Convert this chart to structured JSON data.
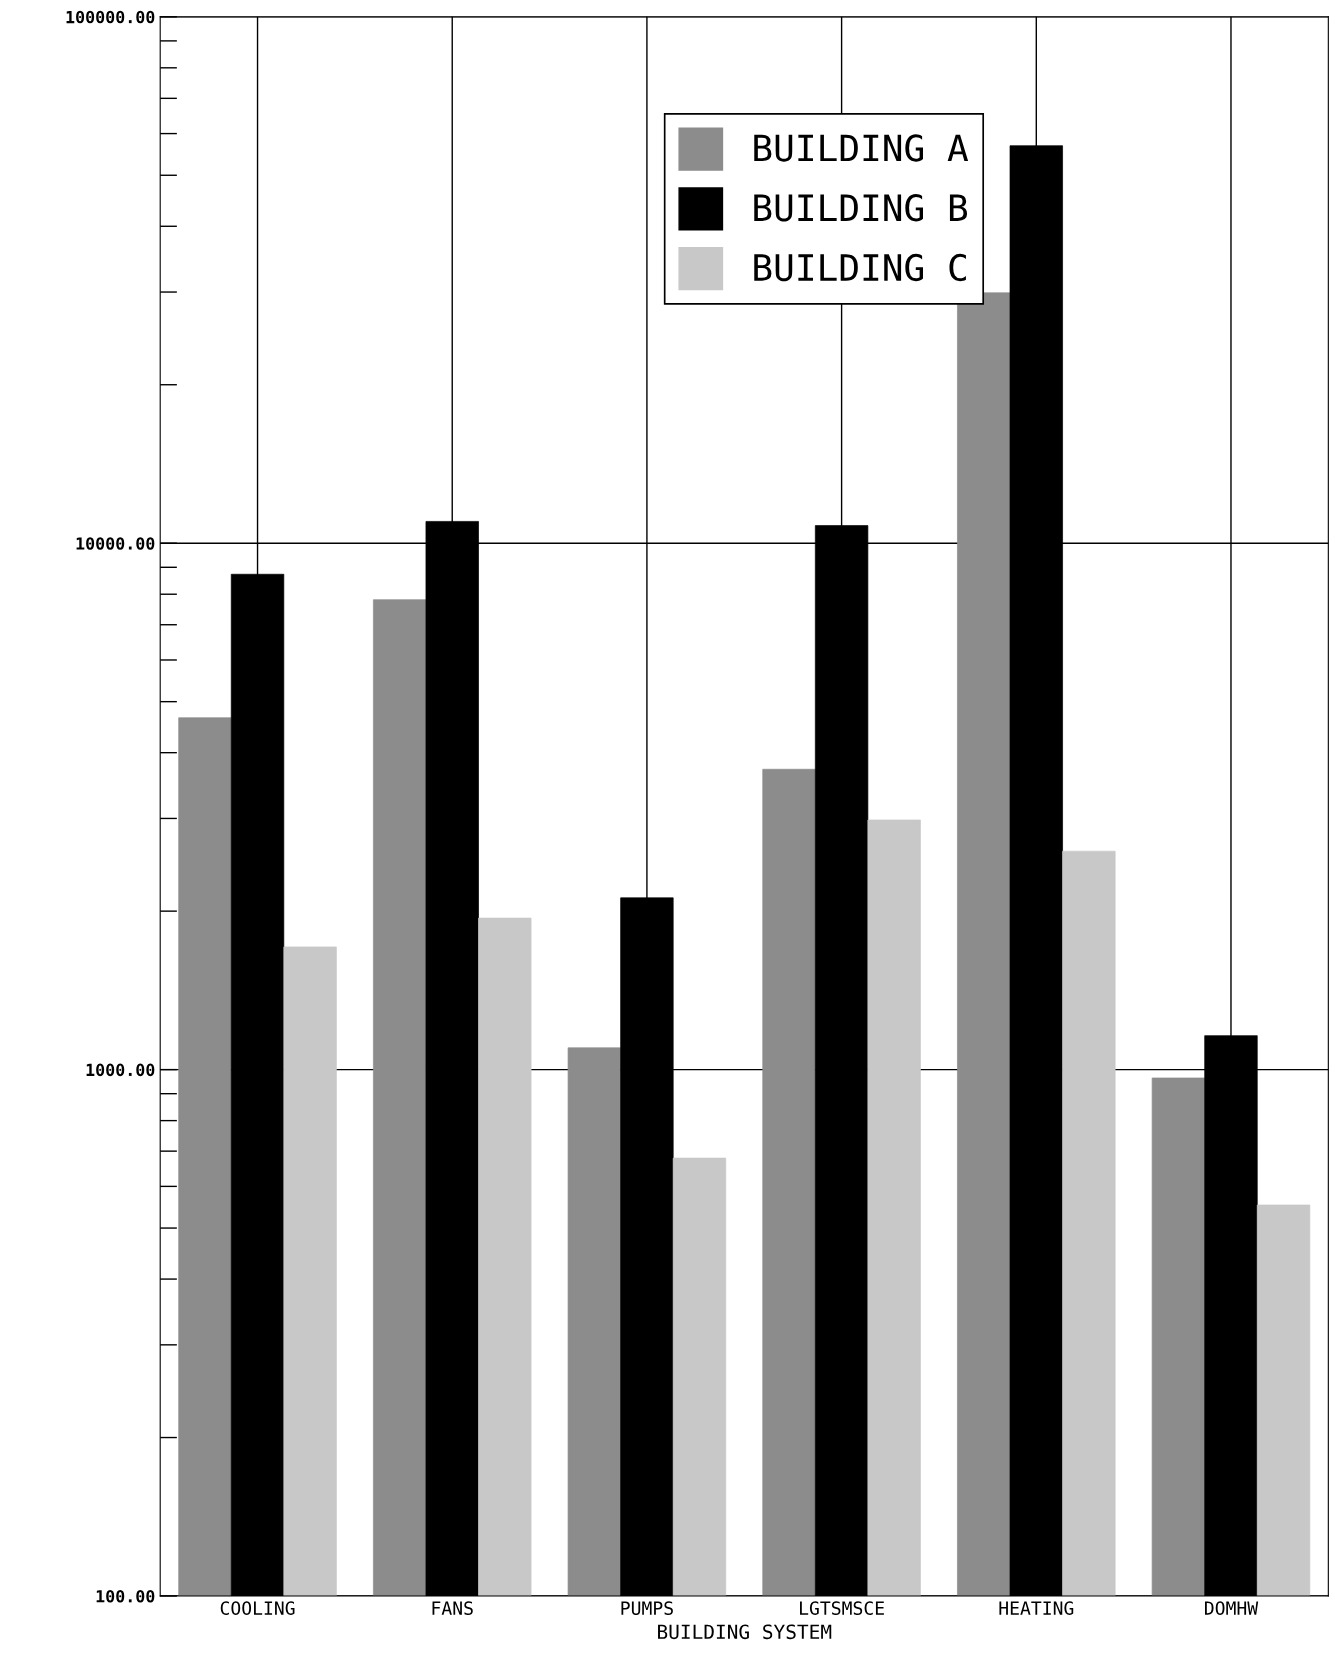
{
  "chart_data": {
    "type": "bar",
    "xlabel": "BUILDING SYSTEM",
    "categories": [
      "COOLING",
      "FANS",
      "PUMPS",
      "LGTSMSCE",
      "HEATING",
      "DOMHW"
    ],
    "series": [
      {
        "name": "BUILDING A",
        "color": "#8c8c8c",
        "values": [
          4660,
          7810,
          1100,
          3720,
          29900,
          964
        ]
      },
      {
        "name": "BUILDING B",
        "color": "#000000",
        "values": [
          8730,
          11000,
          2120,
          10800,
          56900,
          1160
        ]
      },
      {
        "name": "BUILDING C",
        "color": "#c8c8c8",
        "values": [
          1710,
          1940,
          679,
          2980,
          2600,
          553
        ]
      }
    ],
    "log": true,
    "ylim": [
      100,
      100000
    ],
    "yticks": [
      {
        "value": 100,
        "label": "100.00"
      },
      {
        "value": 1000,
        "label": "1000.00"
      },
      {
        "value": 10000,
        "label": "10000.00"
      },
      {
        "value": 100000,
        "label": "100000.00"
      }
    ],
    "grid": true,
    "legend": "top right"
  }
}
